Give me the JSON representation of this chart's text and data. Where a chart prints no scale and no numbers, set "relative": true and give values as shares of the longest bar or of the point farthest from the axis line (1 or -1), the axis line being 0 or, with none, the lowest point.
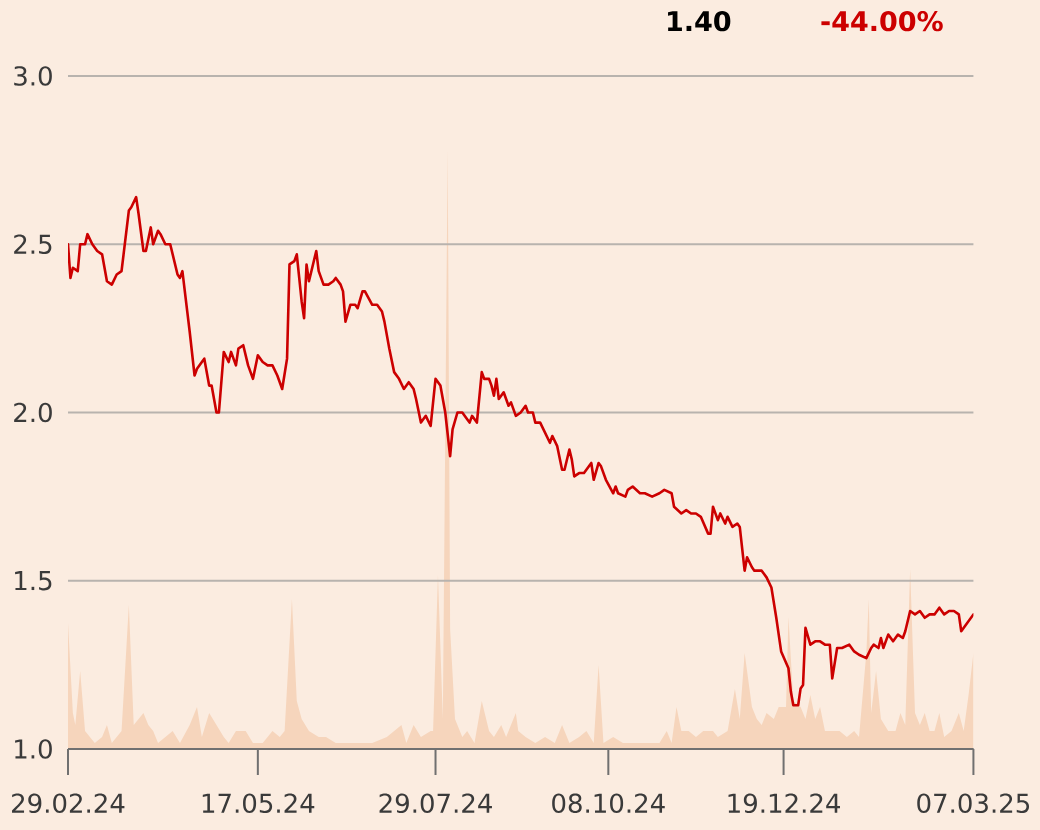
{
  "chart_data": [
    {
      "type": "line",
      "color": "#cc0000",
      "annotations": [
        "1.40",
        "-44.00%"
      ],
      "grid": "y",
      "xlim": [
        "2024-02-29",
        "2025-03-07"
      ],
      "xticks": [
        {
          "value": "2024-02-29",
          "label": "29.02.24"
        },
        {
          "value": "2024-05-17",
          "label": "17.05.24"
        },
        {
          "value": "2024-07-29",
          "label": "29.07.24"
        },
        {
          "value": "2024-10-08",
          "label": "08.10.24"
        },
        {
          "value": "2024-12-19",
          "label": "19.12.24"
        },
        {
          "value": "2025-03-07",
          "label": "07.03.25"
        }
      ],
      "ylim": [
        1.0,
        3.0
      ],
      "yticks": [
        {
          "value": 1.0,
          "label": "1.0"
        },
        {
          "value": 1.5,
          "label": "1.5"
        },
        {
          "value": 2.0,
          "label": "2.0"
        },
        {
          "value": 2.5,
          "label": "2.5"
        },
        {
          "value": 3.0,
          "label": "3.0"
        }
      ],
      "x": [
        "2024-02-29",
        "2024-03-01",
        "2024-03-02",
        "2024-03-04",
        "2024-03-05",
        "2024-03-07",
        "2024-03-08",
        "2024-03-10",
        "2024-03-12",
        "2024-03-14",
        "2024-03-16",
        "2024-03-18",
        "2024-03-20",
        "2024-03-22",
        "2024-03-25",
        "2024-03-26",
        "2024-03-28",
        "2024-03-29",
        "2024-03-31",
        "2024-04-01",
        "2024-04-03",
        "2024-04-04",
        "2024-04-06",
        "2024-04-07",
        "2024-04-09",
        "2024-04-11",
        "2024-04-14",
        "2024-04-15",
        "2024-04-16",
        "2024-04-18",
        "2024-04-19",
        "2024-04-21",
        "2024-04-22",
        "2024-04-24",
        "2024-04-25",
        "2024-04-27",
        "2024-04-28",
        "2024-04-30",
        "2024-05-01",
        "2024-05-03",
        "2024-05-05",
        "2024-05-06",
        "2024-05-08",
        "2024-05-09",
        "2024-05-11",
        "2024-05-13",
        "2024-05-15",
        "2024-05-17",
        "2024-05-19",
        "2024-05-21",
        "2024-05-23",
        "2024-05-25",
        "2024-05-27",
        "2024-05-29",
        "2024-05-30",
        "2024-06-01",
        "2024-06-02",
        "2024-06-04",
        "2024-06-05",
        "2024-06-06",
        "2024-06-07",
        "2024-06-10",
        "2024-06-11",
        "2024-06-13",
        "2024-06-15",
        "2024-06-17",
        "2024-06-18",
        "2024-06-20",
        "2024-06-21",
        "2024-06-22",
        "2024-06-24",
        "2024-06-26",
        "2024-06-27",
        "2024-06-29",
        "2024-06-30",
        "2024-07-03",
        "2024-07-05",
        "2024-07-07",
        "2024-07-08",
        "2024-07-10",
        "2024-07-12",
        "2024-07-14",
        "2024-07-16",
        "2024-07-18",
        "2024-07-20",
        "2024-07-21",
        "2024-07-23",
        "2024-07-25",
        "2024-07-27",
        "2024-07-29",
        "2024-07-31",
        "2024-08-02",
        "2024-08-04",
        "2024-08-05",
        "2024-08-07",
        "2024-08-09",
        "2024-08-11",
        "2024-08-12",
        "2024-08-13",
        "2024-08-15",
        "2024-08-17",
        "2024-08-18",
        "2024-08-20",
        "2024-08-21",
        "2024-08-22",
        "2024-08-23",
        "2024-08-24",
        "2024-08-26",
        "2024-08-28",
        "2024-08-29",
        "2024-08-31",
        "2024-09-02",
        "2024-09-04",
        "2024-09-05",
        "2024-09-07",
        "2024-09-08",
        "2024-09-10",
        "2024-09-12",
        "2024-09-14",
        "2024-09-15",
        "2024-09-17",
        "2024-09-19",
        "2024-09-20",
        "2024-09-22",
        "2024-09-23",
        "2024-09-24",
        "2024-09-26",
        "2024-09-28",
        "2024-10-01",
        "2024-10-02",
        "2024-10-04",
        "2024-10-05",
        "2024-10-07",
        "2024-10-10",
        "2024-10-11",
        "2024-10-12",
        "2024-10-15",
        "2024-10-16",
        "2024-10-18",
        "2024-10-21",
        "2024-10-23",
        "2024-10-26",
        "2024-10-29",
        "2024-10-31",
        "2024-11-03",
        "2024-11-04",
        "2024-11-07",
        "2024-11-09",
        "2024-11-11",
        "2024-11-13",
        "2024-11-15",
        "2024-11-18",
        "2024-11-19",
        "2024-11-20",
        "2024-11-22",
        "2024-11-23",
        "2024-11-25",
        "2024-11-26",
        "2024-11-28",
        "2024-11-30",
        "2024-12-01",
        "2024-12-03",
        "2024-12-04",
        "2024-12-06",
        "2024-12-07",
        "2024-12-10",
        "2024-12-12",
        "2024-12-14",
        "2024-12-16",
        "2024-12-18",
        "2024-12-21",
        "2024-12-22",
        "2024-12-23",
        "2024-12-25",
        "2024-12-26",
        "2024-12-27",
        "2024-12-28",
        "2024-12-30",
        "2025-01-01",
        "2025-01-03",
        "2025-01-05",
        "2025-01-07",
        "2025-01-08",
        "2025-01-10",
        "2025-01-12",
        "2025-01-15",
        "2025-01-17",
        "2025-01-19",
        "2025-01-22",
        "2025-01-24",
        "2025-01-25",
        "2025-01-27",
        "2025-01-28",
        "2025-01-29",
        "2025-01-31",
        "2025-02-02",
        "2025-02-04",
        "2025-02-06",
        "2025-02-07",
        "2025-02-09",
        "2025-02-11",
        "2025-02-13",
        "2025-02-15",
        "2025-02-17",
        "2025-02-19",
        "2025-02-21",
        "2025-02-23",
        "2025-02-25",
        "2025-02-27",
        "2025-03-01",
        "2025-03-02",
        "2025-03-04",
        "2025-03-07"
      ],
      "values": [
        2.5,
        2.4,
        2.43,
        2.42,
        2.5,
        2.5,
        2.53,
        2.5,
        2.48,
        2.47,
        2.39,
        2.38,
        2.41,
        2.42,
        2.6,
        2.61,
        2.64,
        2.59,
        2.48,
        2.48,
        2.55,
        2.5,
        2.54,
        2.53,
        2.5,
        2.5,
        2.41,
        2.4,
        2.42,
        2.3,
        2.24,
        2.11,
        2.13,
        2.15,
        2.16,
        2.08,
        2.08,
        2.0,
        2.0,
        2.18,
        2.15,
        2.18,
        2.14,
        2.19,
        2.2,
        2.14,
        2.1,
        2.17,
        2.15,
        2.14,
        2.14,
        2.11,
        2.07,
        2.16,
        2.44,
        2.45,
        2.47,
        2.33,
        2.28,
        2.44,
        2.39,
        2.48,
        2.42,
        2.38,
        2.38,
        2.39,
        2.4,
        2.38,
        2.36,
        2.27,
        2.32,
        2.32,
        2.31,
        2.36,
        2.36,
        2.32,
        2.32,
        2.3,
        2.27,
        2.19,
        2.12,
        2.1,
        2.07,
        2.09,
        2.07,
        2.04,
        1.97,
        1.99,
        1.96,
        2.1,
        2.08,
        2.0,
        1.87,
        1.95,
        2.0,
        2.0,
        1.98,
        1.97,
        1.99,
        1.97,
        2.12,
        2.1,
        2.1,
        2.08,
        2.05,
        2.1,
        2.04,
        2.06,
        2.02,
        2.03,
        1.99,
        2.0,
        2.02,
        2.0,
        2.0,
        1.97,
        1.97,
        1.94,
        1.91,
        1.93,
        1.9,
        1.83,
        1.83,
        1.89,
        1.86,
        1.81,
        1.82,
        1.82,
        1.85,
        1.8,
        1.85,
        1.84,
        1.8,
        1.76,
        1.78,
        1.76,
        1.75,
        1.77,
        1.78,
        1.76,
        1.76,
        1.75,
        1.76,
        1.77,
        1.76,
        1.72,
        1.7,
        1.71,
        1.7,
        1.7,
        1.69,
        1.64,
        1.64,
        1.72,
        1.68,
        1.7,
        1.67,
        1.69,
        1.66,
        1.67,
        1.66,
        1.53,
        1.57,
        1.54,
        1.53,
        1.53,
        1.51,
        1.48,
        1.39,
        1.29,
        1.24,
        1.17,
        1.13,
        1.13,
        1.18,
        1.19,
        1.36,
        1.31,
        1.32,
        1.32,
        1.31,
        1.31,
        1.21,
        1.3,
        1.3,
        1.31,
        1.29,
        1.28,
        1.27,
        1.3,
        1.31,
        1.3,
        1.33,
        1.3,
        1.34,
        1.32,
        1.34,
        1.33,
        1.35,
        1.41,
        1.4,
        1.41,
        1.39,
        1.4,
        1.4,
        1.42,
        1.4,
        1.41,
        1.41,
        1.4,
        1.35,
        1.37,
        1.4
      ]
    },
    {
      "type": "area",
      "relative": true,
      "color": "#f6d5bc",
      "tick_labels": false,
      "xlim": [
        "2024-02-29",
        "2025-03-07"
      ],
      "x": [
        "2024-02-29",
        "2024-03-02",
        "2024-03-03",
        "2024-03-05",
        "2024-03-07",
        "2024-03-09",
        "2024-03-11",
        "2024-03-14",
        "2024-03-16",
        "2024-03-18",
        "2024-03-22",
        "2024-03-25",
        "2024-03-27",
        "2024-03-29",
        "2024-03-31",
        "2024-04-02",
        "2024-04-04",
        "2024-04-06",
        "2024-04-09",
        "2024-04-12",
        "2024-04-15",
        "2024-04-19",
        "2024-04-22",
        "2024-04-24",
        "2024-04-27",
        "2024-04-30",
        "2024-05-03",
        "2024-05-05",
        "2024-05-08",
        "2024-05-12",
        "2024-05-15",
        "2024-05-19",
        "2024-05-23",
        "2024-05-26",
        "2024-05-28",
        "2024-05-31",
        "2024-06-02",
        "2024-06-04",
        "2024-06-07",
        "2024-06-11",
        "2024-06-14",
        "2024-06-18",
        "2024-06-22",
        "2024-06-26",
        "2024-06-29",
        "2024-07-03",
        "2024-07-09",
        "2024-07-12",
        "2024-07-15",
        "2024-07-17",
        "2024-07-20",
        "2024-07-23",
        "2024-07-27",
        "2024-07-28",
        "2024-07-30",
        "2024-08-01",
        "2024-08-03",
        "2024-08-04",
        "2024-08-06",
        "2024-08-09",
        "2024-08-11",
        "2024-08-14",
        "2024-08-17",
        "2024-08-20",
        "2024-08-22",
        "2024-08-25",
        "2024-08-27",
        "2024-08-31",
        "2024-09-01",
        "2024-09-04",
        "2024-09-08",
        "2024-09-12",
        "2024-09-16",
        "2024-09-19",
        "2024-09-22",
        "2024-09-26",
        "2024-09-29",
        "2024-10-02",
        "2024-10-04",
        "2024-10-06",
        "2024-10-10",
        "2024-10-14",
        "2024-10-18",
        "2024-10-23",
        "2024-10-29",
        "2024-11-01",
        "2024-11-03",
        "2024-11-05",
        "2024-11-07",
        "2024-11-10",
        "2024-11-13",
        "2024-11-16",
        "2024-11-20",
        "2024-11-22",
        "2024-11-26",
        "2024-11-29",
        "2024-12-01",
        "2024-12-03",
        "2024-12-06",
        "2024-12-08",
        "2024-12-10",
        "2024-12-12",
        "2024-12-15",
        "2024-12-17",
        "2024-12-20",
        "2024-12-21",
        "2024-12-23",
        "2024-12-26",
        "2024-12-28",
        "2024-12-30",
        "2025-01-01",
        "2025-01-03",
        "2025-01-05",
        "2025-01-08",
        "2025-01-11",
        "2025-01-14",
        "2025-01-17",
        "2025-01-19",
        "2025-01-22",
        "2025-01-23",
        "2025-01-24",
        "2025-01-26",
        "2025-01-28",
        "2025-01-31",
        "2025-02-03",
        "2025-02-05",
        "2025-02-07",
        "2025-02-09",
        "2025-02-11",
        "2025-02-13",
        "2025-02-15",
        "2025-02-17",
        "2025-02-19",
        "2025-02-21",
        "2025-02-23",
        "2025-02-26",
        "2025-03-01",
        "2025-03-03",
        "2025-03-05",
        "2025-03-07"
      ],
      "values": [
        0.21,
        0.06,
        0.04,
        0.13,
        0.03,
        0.02,
        0.01,
        0.02,
        0.04,
        0.01,
        0.03,
        0.24,
        0.04,
        0.05,
        0.06,
        0.04,
        0.03,
        0.01,
        0.02,
        0.03,
        0.01,
        0.04,
        0.07,
        0.02,
        0.06,
        0.04,
        0.02,
        0.01,
        0.03,
        0.03,
        0.01,
        0.01,
        0.03,
        0.02,
        0.03,
        0.25,
        0.08,
        0.05,
        0.03,
        0.02,
        0.02,
        0.01,
        0.01,
        0.01,
        0.01,
        0.01,
        0.02,
        0.03,
        0.04,
        0.01,
        0.04,
        0.02,
        0.03,
        0.03,
        0.29,
        0.05,
        1,
        0.2,
        0.05,
        0.02,
        0.03,
        0.01,
        0.08,
        0.03,
        0.02,
        0.04,
        0.02,
        0.06,
        0.03,
        0.02,
        0.01,
        0.02,
        0.01,
        0.04,
        0.01,
        0.02,
        0.03,
        0.01,
        0.14,
        0.01,
        0.02,
        0.01,
        0.01,
        0.01,
        0.01,
        0.03,
        0.01,
        0.07,
        0.03,
        0.03,
        0.02,
        0.03,
        0.03,
        0.02,
        0.03,
        0.1,
        0.05,
        0.16,
        0.07,
        0.05,
        0.04,
        0.06,
        0.05,
        0.07,
        0.07,
        0.22,
        0.08,
        0.07,
        0.05,
        0.09,
        0.05,
        0.07,
        0.03,
        0.03,
        0.03,
        0.02,
        0.03,
        0.02,
        0.16,
        0.25,
        0.06,
        0.13,
        0.05,
        0.03,
        0.03,
        0.06,
        0.04,
        0.3,
        0.06,
        0.04,
        0.06,
        0.03,
        0.03,
        0.06,
        0.02,
        0.03,
        0.06,
        0.03,
        0.09,
        0.16
      ]
    }
  ]
}
